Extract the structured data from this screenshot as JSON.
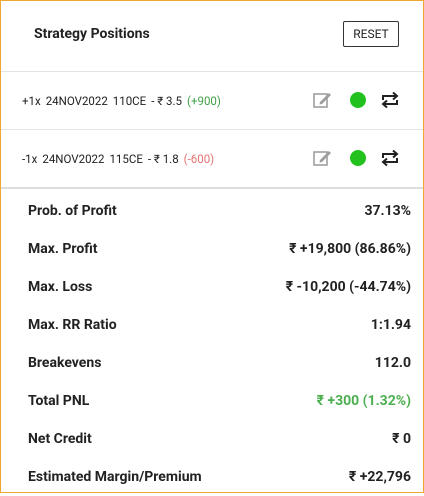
{
  "header": {
    "title": "Strategy Positions",
    "button": "RESET"
  },
  "positions": [
    {
      "qty": "+1x",
      "expiry": "24NOV2022",
      "strike": "110CE",
      "price": "- ₹ 3.5",
      "pnl": "(+900)",
      "pnl_color": "#43a047"
    },
    {
      "qty": "-1x",
      "expiry": "24NOV2022",
      "strike": "115CE",
      "price": "- ₹ 1.8",
      "pnl": "(-600)",
      "pnl_color": "#e57373"
    }
  ],
  "metrics": [
    {
      "label": "Prob. of Profit",
      "value": "37.13%"
    },
    {
      "label": "Max. Profit",
      "value": "₹ +19,800 (86.86%)"
    },
    {
      "label": "Max. Loss",
      "value": "₹ -10,200 (-44.74%)"
    },
    {
      "label": "Max. RR Ratio",
      "value": "1:1.94"
    },
    {
      "label": "Breakevens",
      "value": "112.0"
    },
    {
      "label": "Total PNL",
      "value": "₹ +300 (1.32%)",
      "color": "#4caf50"
    },
    {
      "label": "Net Credit",
      "value": "₹ 0"
    },
    {
      "label": "Estimated Margin/Premium",
      "value": "₹ +22,796"
    }
  ]
}
